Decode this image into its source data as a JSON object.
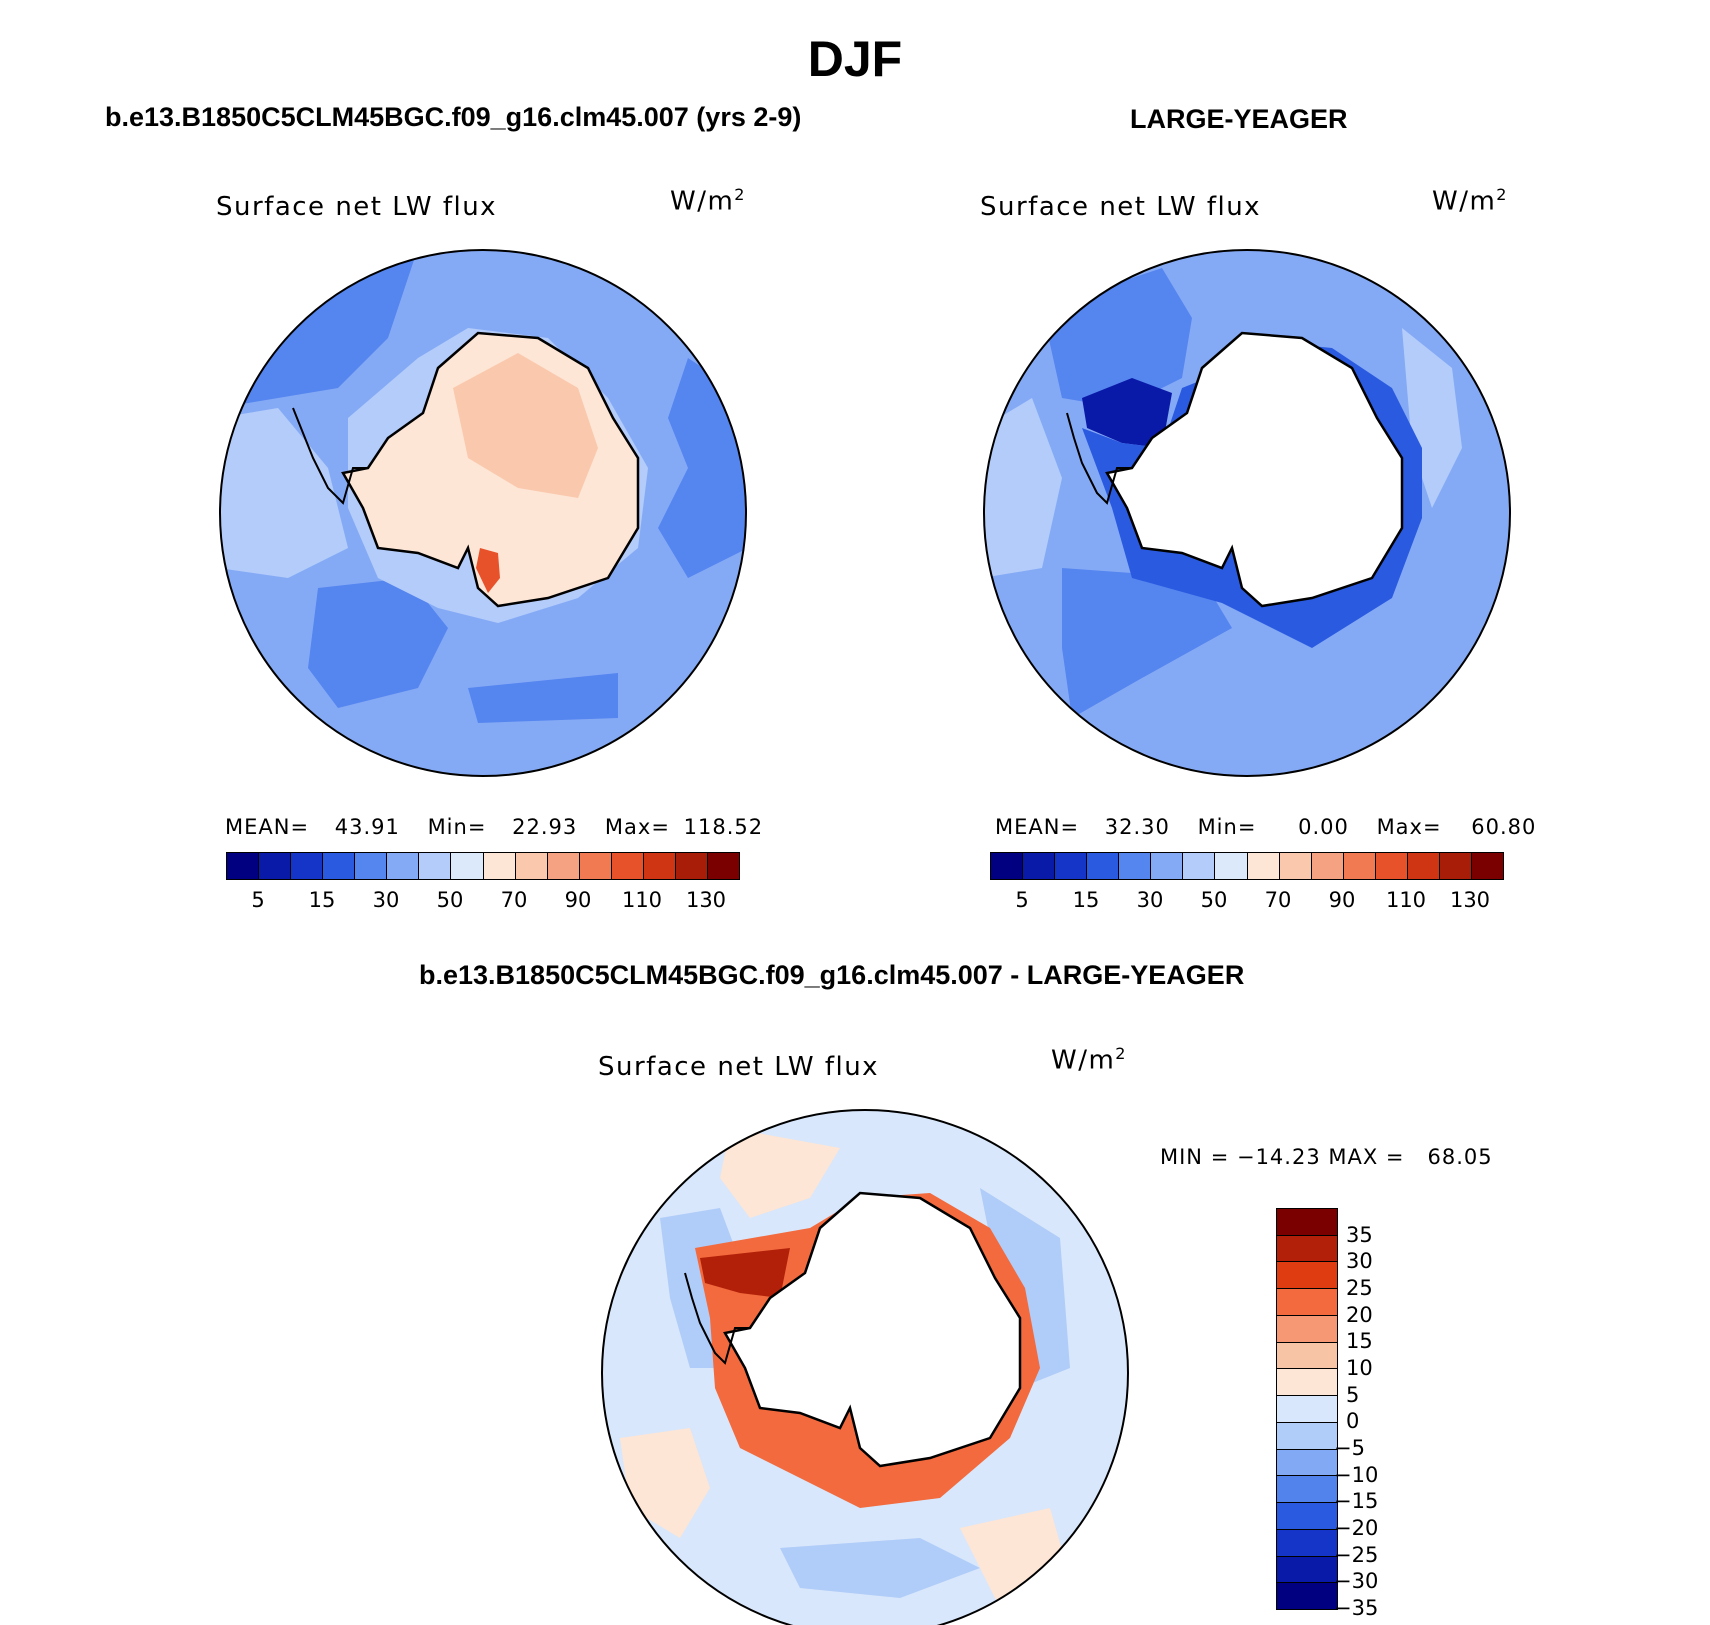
{
  "figure": {
    "season_title": "DJF"
  },
  "panels": [
    {
      "title": "b.e13.B1850C5CLM45BGC.f09_g16.clm45.007 (yrs 2-9)",
      "variable_label": "Surface net LW flux",
      "units_base": "W/m",
      "units_exp": "2",
      "stats": {
        "mean_label": "MEAN=",
        "mean_value": "43.91",
        "min_label": "Min=",
        "min_value": "22.93",
        "max_label": "Max=",
        "max_value": "118.52"
      }
    },
    {
      "title": "LARGE-YEAGER",
      "variable_label": "Surface net LW flux",
      "units_base": "W/m",
      "units_exp": "2",
      "stats": {
        "mean_label": "MEAN=",
        "mean_value": "32.30",
        "min_label": "Min=",
        "min_value": "0.00",
        "max_label": "Max=",
        "max_value": "60.80"
      }
    },
    {
      "title": "b.e13.B1850C5CLM45BGC.f09_g16.clm45.007 - LARGE-YEAGER",
      "variable_label": "Surface net LW flux",
      "units_base": "W/m",
      "units_exp": "2",
      "stats_text": "MIN = −14.23 MAX =   68.05"
    }
  ],
  "colorbar_abs": {
    "colors": [
      "#000080",
      "#0a1aa8",
      "#1535c8",
      "#2a5ae0",
      "#5585ef",
      "#85aaf5",
      "#b3ccfa",
      "#dce9fb",
      "#fde6d6",
      "#fac9ad",
      "#f5a283",
      "#f27a52",
      "#e8522b",
      "#cf3512",
      "#a81d08",
      "#7a0000"
    ],
    "tick_labels": [
      "5",
      "15",
      "30",
      "50",
      "70",
      "90",
      "110",
      "130"
    ]
  },
  "colorbar_diff": {
    "colors": [
      "#7a0000",
      "#b3200a",
      "#e03c12",
      "#f26a3d",
      "#f59873",
      "#f8c4a6",
      "#fde6d6",
      "#d8e7fb",
      "#b0ccf8",
      "#82a9f3",
      "#5283ec",
      "#2a5ae0",
      "#1535c8",
      "#0a1aa8",
      "#000080"
    ],
    "tick_labels": [
      "35",
      "30",
      "25",
      "20",
      "15",
      "10",
      "5",
      "0",
      "−5",
      "−10",
      "−15",
      "−20",
      "−25",
      "−30",
      "−35"
    ]
  },
  "map_colors": {
    "ocean_mid": "#85aaf5",
    "ocean_dark": "#5585ef",
    "ocean_light": "#b3ccfa",
    "land_warm": "#fde6d6",
    "land_warmer": "#fac9ad",
    "warm_spot": "#e8522b",
    "deep_blue": "#0a1aa8",
    "blue": "#2a5ae0",
    "diff_ocean": "#d8e7fb",
    "diff_ocean2": "#b0ccf8",
    "diff_warm": "#fde6d6",
    "diff_red": "#b3200a",
    "diff_orange": "#f26a3d",
    "white": "#ffffff"
  },
  "icons": [
    "antarctica-coastline-icon"
  ]
}
